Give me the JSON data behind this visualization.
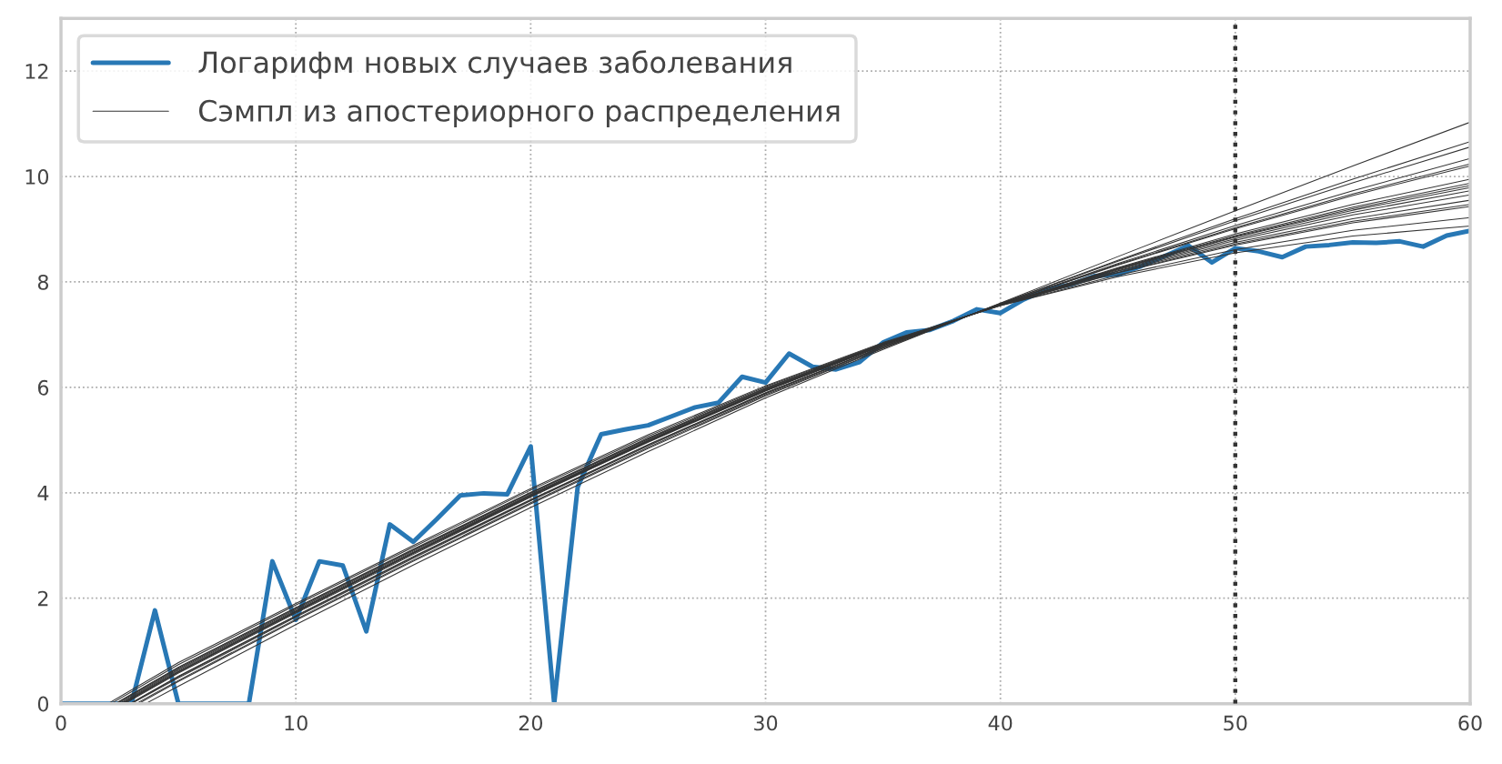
{
  "chart_data": {
    "type": "line",
    "xlim": [
      0,
      60
    ],
    "ylim": [
      0,
      13
    ],
    "xticks": [
      0,
      10,
      20,
      30,
      40,
      50,
      60
    ],
    "yticks": [
      0,
      2,
      4,
      6,
      8,
      10,
      12
    ],
    "grid": true,
    "legend": "top left",
    "series": [
      {
        "name": "Логарифм новых случаев заболевания",
        "color": "#2878b5",
        "x": [
          0,
          1,
          2,
          3,
          4,
          5,
          6,
          7,
          8,
          9,
          10,
          11,
          12,
          13,
          14,
          15,
          16,
          17,
          18,
          19,
          20,
          21,
          22,
          23,
          24,
          25,
          26,
          27,
          28,
          29,
          30,
          31,
          32,
          33,
          34,
          35,
          36,
          37,
          38,
          39,
          40,
          41,
          42,
          43,
          44,
          45,
          46,
          47,
          48,
          49,
          50,
          51,
          52,
          53,
          54,
          55,
          56,
          57,
          58,
          59,
          60
        ],
        "values": [
          0,
          0,
          0,
          0,
          1.77,
          0,
          0,
          0,
          0,
          2.7,
          1.59,
          2.7,
          2.62,
          1.37,
          3.4,
          3.07,
          3.5,
          3.95,
          3.99,
          3.97,
          4.88,
          0,
          4.11,
          5.11,
          5.2,
          5.28,
          5.45,
          5.62,
          5.71,
          6.2,
          6.09,
          6.64,
          6.39,
          6.34,
          6.48,
          6.85,
          7.04,
          7.09,
          7.26,
          7.48,
          7.41,
          7.67,
          7.86,
          7.95,
          8.11,
          8.14,
          8.3,
          8.49,
          8.69,
          8.37,
          8.64,
          8.58,
          8.47,
          8.67,
          8.7,
          8.75,
          8.74,
          8.77,
          8.67,
          8.88,
          8.97
        ]
      },
      {
        "name": "Сэмпл из апостериорного распределения",
        "color": "#333333",
        "x": [
          3.6,
          5,
          10,
          15,
          20,
          25,
          30,
          35,
          40,
          45,
          50,
          55,
          60
        ],
        "values": [
          0,
          0.33,
          1.5,
          2.63,
          3.72,
          4.78,
          5.8,
          6.72,
          7.6,
          8.48,
          9.35,
          10.2,
          11.03
        ]
      },
      {
        "color": "#333333",
        "x": [
          3.3,
          5,
          10,
          15,
          20,
          25,
          30,
          35,
          40,
          45,
          50,
          55,
          60
        ],
        "values": [
          0,
          0.42,
          1.58,
          2.7,
          3.79,
          4.84,
          5.84,
          6.74,
          7.59,
          8.41,
          9.2,
          9.95,
          10.66
        ]
      },
      {
        "color": "#333333",
        "x": [
          3.2,
          5,
          10,
          15,
          20,
          25,
          30,
          35,
          40,
          45,
          50,
          55,
          60
        ],
        "values": [
          0,
          0.44,
          1.6,
          2.72,
          3.81,
          4.86,
          5.86,
          6.75,
          7.59,
          8.39,
          9.16,
          9.88,
          10.56
        ]
      },
      {
        "color": "#333333",
        "x": [
          3.0,
          5,
          10,
          15,
          20,
          25,
          30,
          35,
          40,
          45,
          50,
          55,
          60
        ],
        "values": [
          0,
          0.49,
          1.64,
          2.76,
          3.85,
          4.89,
          5.88,
          6.77,
          7.58,
          8.35,
          9.07,
          9.73,
          10.34
        ]
      },
      {
        "color": "#333333",
        "x": [
          2.96,
          5,
          10,
          15,
          20,
          25,
          30,
          35,
          40,
          45,
          50,
          55,
          60
        ],
        "values": [
          0,
          0.51,
          1.66,
          2.78,
          3.86,
          4.91,
          5.89,
          6.77,
          7.58,
          8.33,
          9.03,
          9.67,
          10.24
        ]
      },
      {
        "color": "#333333",
        "x": [
          2.93,
          5,
          10,
          15,
          20,
          25,
          30,
          35,
          40,
          45,
          50,
          55,
          60
        ],
        "values": [
          0,
          0.52,
          1.67,
          2.79,
          3.87,
          4.91,
          5.9,
          6.77,
          7.58,
          8.32,
          9.01,
          9.64,
          10.2
        ]
      },
      {
        "color": "#333333",
        "x": [
          2.72,
          5,
          10,
          15,
          20,
          25,
          30,
          35,
          40,
          45,
          50,
          55,
          60
        ],
        "values": [
          0,
          0.58,
          1.72,
          2.83,
          3.92,
          4.96,
          5.93,
          6.79,
          7.57,
          8.27,
          8.91,
          9.47,
          9.95
        ]
      },
      {
        "color": "#333333",
        "x": [
          2.66,
          5,
          10,
          15,
          20,
          25,
          30,
          35,
          40,
          45,
          50,
          55,
          60
        ],
        "values": [
          0,
          0.6,
          1.74,
          2.85,
          3.93,
          4.97,
          5.94,
          6.8,
          7.57,
          8.26,
          8.88,
          9.42,
          9.87
        ]
      },
      {
        "color": "#333333",
        "x": [
          2.62,
          5,
          10,
          15,
          20,
          25,
          30,
          35,
          40,
          45,
          50,
          55,
          60
        ],
        "values": [
          0,
          0.6,
          1.74,
          2.86,
          3.94,
          4.98,
          5.94,
          6.8,
          7.57,
          8.25,
          8.86,
          9.39,
          9.83
        ]
      },
      {
        "color": "#333333",
        "x": [
          2.59,
          5,
          10,
          15,
          20,
          25,
          30,
          35,
          40,
          45,
          50,
          55,
          60
        ],
        "values": [
          0,
          0.61,
          1.75,
          2.86,
          3.95,
          4.98,
          5.94,
          6.8,
          7.57,
          8.24,
          8.85,
          9.36,
          9.79
        ]
      },
      {
        "color": "#333333",
        "x": [
          2.54,
          5,
          10,
          15,
          20,
          25,
          30,
          35,
          40,
          45,
          50,
          55,
          60
        ],
        "values": [
          0,
          0.63,
          1.76,
          2.87,
          3.96,
          4.99,
          5.95,
          6.81,
          7.57,
          8.23,
          8.82,
          9.32,
          9.73
        ]
      },
      {
        "color": "#333333",
        "x": [
          2.48,
          5,
          10,
          15,
          20,
          25,
          30,
          35,
          40,
          45,
          50,
          55,
          60
        ],
        "values": [
          0,
          0.65,
          1.78,
          2.89,
          3.97,
          5.0,
          5.96,
          6.81,
          7.57,
          8.21,
          8.79,
          9.27,
          9.65
        ]
      },
      {
        "color": "#333333",
        "x": [
          2.4,
          5,
          10,
          15,
          20,
          25,
          30,
          35,
          40,
          45,
          50,
          55,
          60
        ],
        "values": [
          0,
          0.67,
          1.8,
          2.91,
          3.99,
          5.02,
          5.97,
          6.82,
          7.56,
          8.2,
          8.75,
          9.2,
          9.55
        ]
      },
      {
        "color": "#333333",
        "x": [
          2.34,
          5,
          10,
          15,
          20,
          25,
          30,
          35,
          40,
          45,
          50,
          55,
          60
        ],
        "values": [
          0,
          0.69,
          1.82,
          2.92,
          4.0,
          5.03,
          5.98,
          6.82,
          7.56,
          8.18,
          8.72,
          9.15,
          9.47
        ]
      },
      {
        "color": "#333333",
        "x": [
          2.3,
          5,
          10,
          15,
          20,
          25,
          30,
          35,
          40,
          45,
          50,
          55,
          60
        ],
        "values": [
          0,
          0.69,
          1.82,
          2.93,
          4.01,
          5.04,
          5.99,
          6.83,
          7.56,
          8.17,
          8.7,
          9.12,
          9.43
        ]
      },
      {
        "color": "#333333",
        "x": [
          2.13,
          5,
          10,
          15,
          20,
          25,
          30,
          35,
          40,
          45,
          50,
          55,
          60
        ],
        "values": [
          0,
          0.74,
          1.87,
          2.97,
          4.05,
          5.07,
          6.01,
          6.84,
          7.55,
          8.13,
          8.61,
          8.98,
          9.22
        ]
      },
      {
        "color": "#333333",
        "x": [
          2.0,
          5,
          10,
          15,
          20,
          25,
          30,
          35,
          40,
          45,
          50,
          55,
          60
        ],
        "values": [
          0,
          0.78,
          1.9,
          3.0,
          4.08,
          5.1,
          6.03,
          6.85,
          7.55,
          8.1,
          8.55,
          8.87,
          9.06
        ]
      }
    ],
    "ref_lines": [
      {
        "axis": "x",
        "value": 50,
        "color": "#333333",
        "line_style": "dotted"
      }
    ]
  }
}
